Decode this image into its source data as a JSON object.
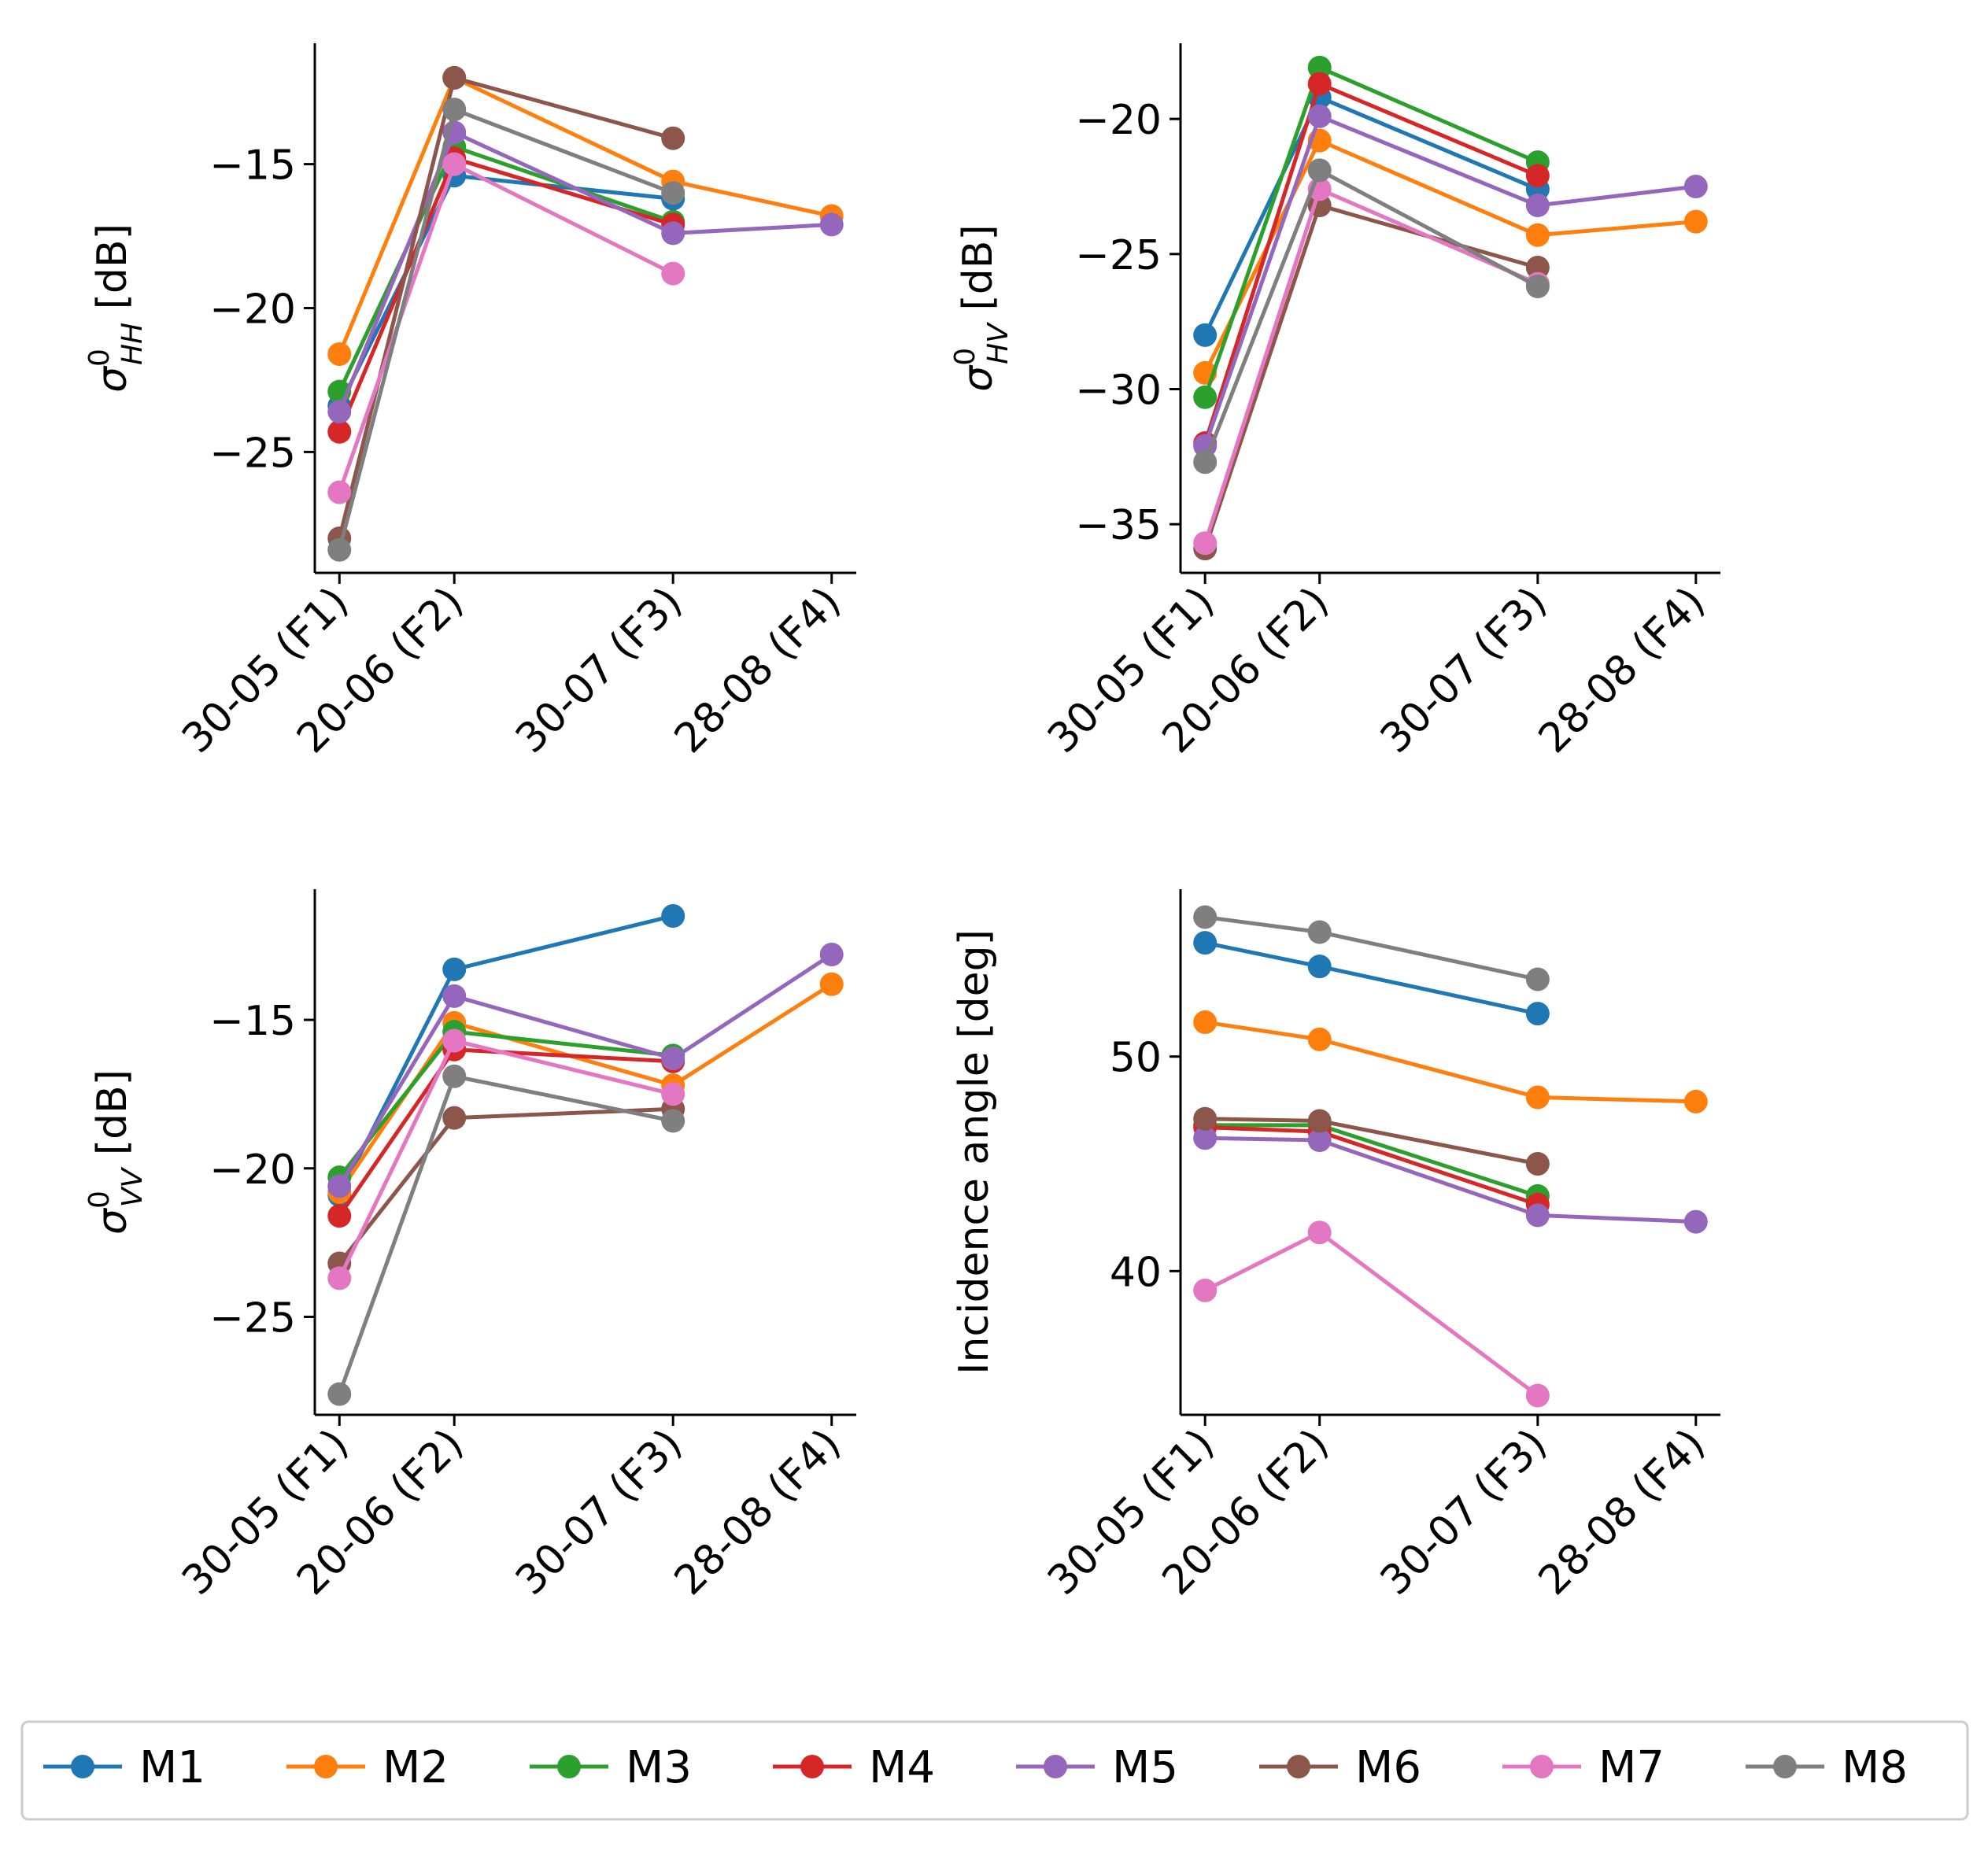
{
  "legend": {
    "position": "bottom-center",
    "entries": [
      {
        "name": "M1",
        "color": "#1f77b4"
      },
      {
        "name": "M2",
        "color": "#ff7f0e"
      },
      {
        "name": "M3",
        "color": "#2ca02c"
      },
      {
        "name": "M4",
        "color": "#d62728"
      },
      {
        "name": "M5",
        "color": "#9467bd"
      },
      {
        "name": "M6",
        "color": "#8c564b"
      },
      {
        "name": "M7",
        "color": "#e377c2"
      },
      {
        "name": "M8",
        "color": "#7f7f7f"
      }
    ]
  },
  "chart_data": [
    {
      "type": "line",
      "panel": "top-left",
      "ylabel_main": "σ",
      "ylabel_sup": "0",
      "ylabel_sub": "HH",
      "ylabel_unit": "[dB]",
      "categories": [
        "30-05 (F1)",
        "20-06 (F2)",
        "30-07 (F3)",
        "28-08 (F4)"
      ],
      "x": [
        0,
        21,
        61,
        90
      ],
      "xlim": [
        -4.5,
        94.5
      ],
      "ylim": [
        -29.2,
        -10.8
      ],
      "yticks": [
        -15,
        -20,
        -25
      ],
      "ytick_labels": [
        "−15",
        "−20",
        "−25"
      ],
      "series": [
        {
          "name": "M1",
          "values": [
            -23.4,
            -15.4,
            -16.2,
            null
          ]
        },
        {
          "name": "M2",
          "values": [
            -21.6,
            -12.0,
            -15.6,
            -16.8
          ]
        },
        {
          "name": "M3",
          "values": [
            -22.9,
            -14.4,
            -17.0,
            null
          ]
        },
        {
          "name": "M4",
          "values": [
            -24.3,
            -14.8,
            -17.1,
            null
          ]
        },
        {
          "name": "M5",
          "values": [
            -23.6,
            -13.9,
            -17.4,
            -17.1
          ]
        },
        {
          "name": "M6",
          "values": [
            -28.0,
            -12.0,
            -14.1,
            null
          ]
        },
        {
          "name": "M7",
          "values": [
            -26.4,
            -15.0,
            -18.8,
            null
          ]
        },
        {
          "name": "M8",
          "values": [
            -28.4,
            -13.1,
            -16.0,
            null
          ]
        }
      ]
    },
    {
      "type": "line",
      "panel": "top-right",
      "ylabel_main": "σ",
      "ylabel_sup": "0",
      "ylabel_sub": "HV",
      "ylabel_unit": "[dB]",
      "categories": [
        "30-05 (F1)",
        "20-06 (F2)",
        "30-07 (F3)",
        "28-08 (F4)"
      ],
      "x": [
        0,
        21,
        61,
        90
      ],
      "xlim": [
        -4.5,
        94.5
      ],
      "ylim": [
        -36.8,
        -17.2
      ],
      "yticks": [
        -20,
        -25,
        -30,
        -35
      ],
      "ytick_labels": [
        "−20",
        "−25",
        "−30",
        "−35"
      ],
      "series": [
        {
          "name": "M1",
          "values": [
            -28.0,
            -19.2,
            -22.6,
            null
          ]
        },
        {
          "name": "M2",
          "values": [
            -29.4,
            -20.8,
            -24.3,
            -23.8
          ]
        },
        {
          "name": "M3",
          "values": [
            -30.3,
            -18.1,
            -21.6,
            null
          ]
        },
        {
          "name": "M4",
          "values": [
            -32.0,
            -18.7,
            -22.1,
            null
          ]
        },
        {
          "name": "M5",
          "values": [
            -32.1,
            -19.9,
            -23.2,
            -22.5
          ]
        },
        {
          "name": "M6",
          "values": [
            -35.9,
            -23.2,
            -25.5,
            null
          ]
        },
        {
          "name": "M7",
          "values": [
            -35.7,
            -22.6,
            -26.1,
            null
          ]
        },
        {
          "name": "M8",
          "values": [
            -32.7,
            -21.9,
            -26.2,
            null
          ]
        }
      ]
    },
    {
      "type": "line",
      "panel": "bottom-left",
      "ylabel_main": "σ",
      "ylabel_sup": "0",
      "ylabel_sub": "VV",
      "ylabel_unit": "[dB]",
      "categories": [
        "30-05 (F1)",
        "20-06 (F2)",
        "30-07 (F3)",
        "28-08 (F4)"
      ],
      "x": [
        0,
        21,
        61,
        90
      ],
      "xlim": [
        -4.5,
        94.5
      ],
      "ylim": [
        -28.3,
        -10.6
      ],
      "yticks": [
        -15,
        -20,
        -25
      ],
      "ytick_labels": [
        "−15",
        "−20",
        "−25"
      ],
      "series": [
        {
          "name": "M1",
          "values": [
            -20.9,
            -13.3,
            -11.5,
            null
          ]
        },
        {
          "name": "M2",
          "values": [
            -20.8,
            -15.1,
            -17.2,
            -13.8
          ]
        },
        {
          "name": "M3",
          "values": [
            -20.3,
            -15.4,
            -16.2,
            null
          ]
        },
        {
          "name": "M4",
          "values": [
            -21.6,
            -16.0,
            -16.4,
            null
          ]
        },
        {
          "name": "M5",
          "values": [
            -20.6,
            -14.2,
            -16.3,
            -12.8
          ]
        },
        {
          "name": "M6",
          "values": [
            -23.2,
            -18.3,
            -18.0,
            null
          ]
        },
        {
          "name": "M7",
          "values": [
            -23.7,
            -15.7,
            -17.5,
            null
          ]
        },
        {
          "name": "M8",
          "values": [
            -27.6,
            -16.9,
            -18.4,
            null
          ]
        }
      ]
    },
    {
      "type": "line",
      "panel": "bottom-right",
      "ylabel": "Incidence angle [deg]",
      "categories": [
        "30-05 (F1)",
        "20-06 (F2)",
        "30-07 (F3)",
        "28-08 (F4)"
      ],
      "x": [
        0,
        21,
        61,
        90
      ],
      "xlim": [
        -4.5,
        94.5
      ],
      "ylim": [
        33.3,
        57.8
      ],
      "yticks": [
        50,
        40
      ],
      "ytick_labels": [
        "50",
        "40"
      ],
      "series": [
        {
          "name": "M1",
          "values": [
            55.3,
            54.2,
            52.0,
            null
          ]
        },
        {
          "name": "M2",
          "values": [
            51.6,
            50.8,
            48.1,
            47.9
          ]
        },
        {
          "name": "M3",
          "values": [
            46.8,
            46.8,
            43.5,
            null
          ]
        },
        {
          "name": "M4",
          "values": [
            46.7,
            46.5,
            43.1,
            null
          ]
        },
        {
          "name": "M5",
          "values": [
            46.2,
            46.1,
            42.6,
            42.3
          ]
        },
        {
          "name": "M6",
          "values": [
            47.1,
            47.0,
            45.0,
            null
          ]
        },
        {
          "name": "M7",
          "values": [
            39.1,
            41.8,
            34.2,
            null
          ]
        },
        {
          "name": "M8",
          "values": [
            56.5,
            55.8,
            53.6,
            null
          ]
        }
      ]
    }
  ]
}
